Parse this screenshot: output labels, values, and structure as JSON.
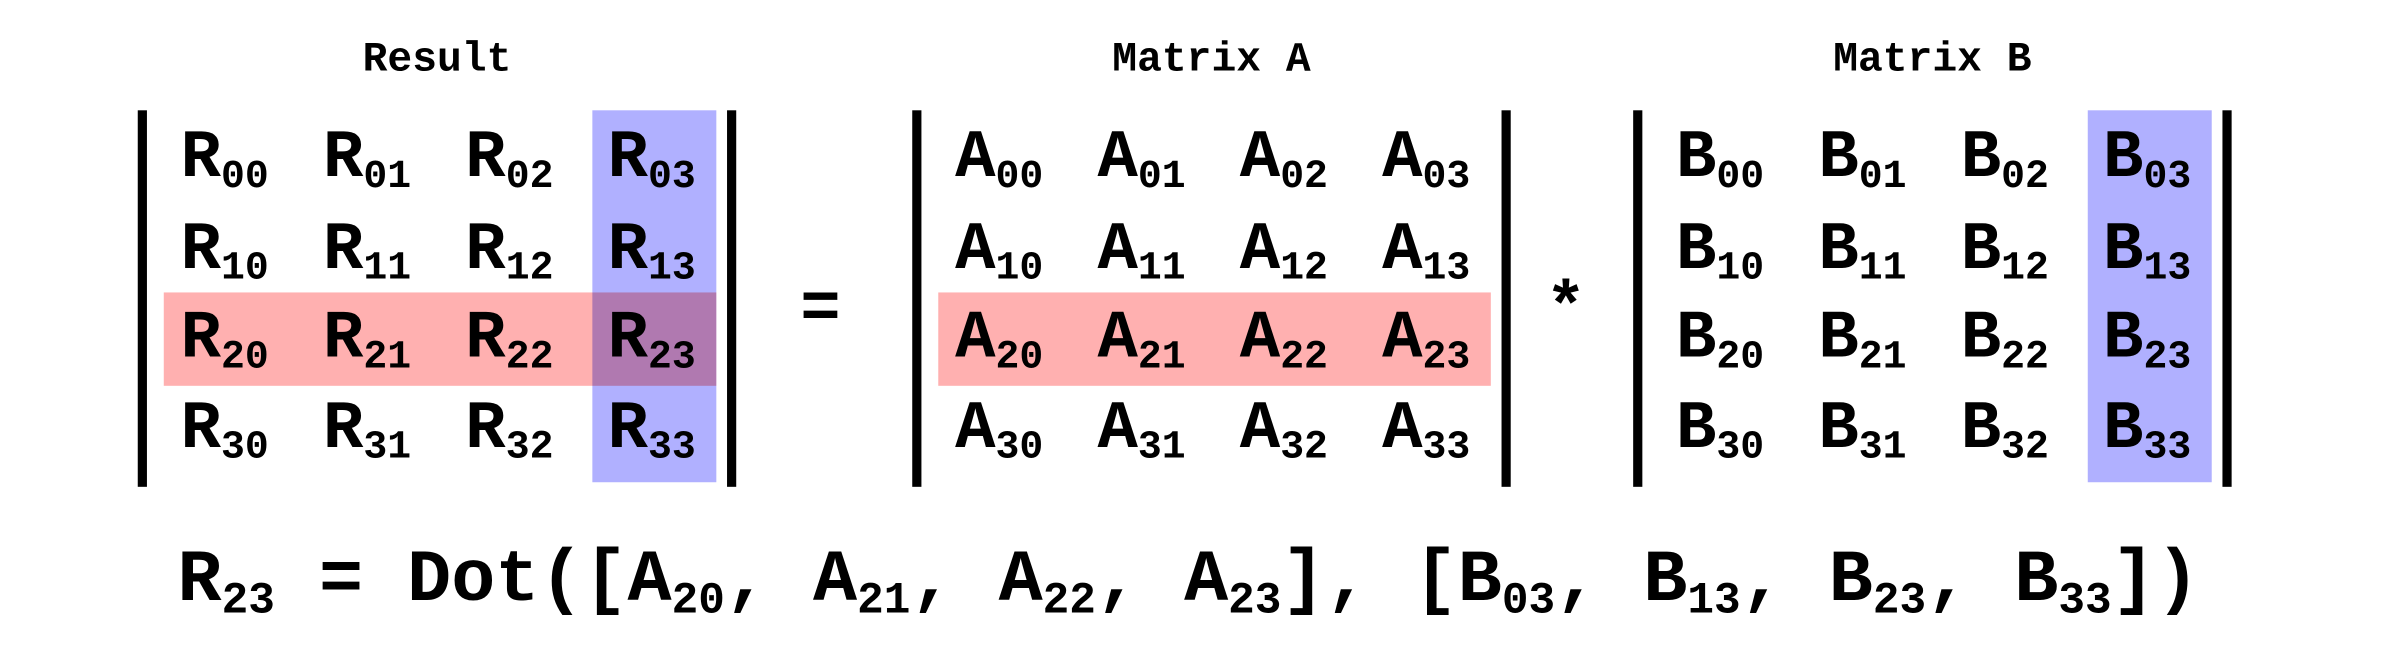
{
  "matrices": [
    {
      "title": "Result",
      "highlight_row": 2,
      "highlight_col": 3,
      "cells": [
        [
          {
            "base": "R",
            "sub": "00"
          },
          {
            "base": "R",
            "sub": "01"
          },
          {
            "base": "R",
            "sub": "02"
          },
          {
            "base": "R",
            "sub": "03"
          }
        ],
        [
          {
            "base": "R",
            "sub": "10"
          },
          {
            "base": "R",
            "sub": "11"
          },
          {
            "base": "R",
            "sub": "12"
          },
          {
            "base": "R",
            "sub": "13"
          }
        ],
        [
          {
            "base": "R",
            "sub": "20"
          },
          {
            "base": "R",
            "sub": "21"
          },
          {
            "base": "R",
            "sub": "22"
          },
          {
            "base": "R",
            "sub": "23"
          }
        ],
        [
          {
            "base": "R",
            "sub": "30"
          },
          {
            "base": "R",
            "sub": "31"
          },
          {
            "base": "R",
            "sub": "32"
          },
          {
            "base": "R",
            "sub": "33"
          }
        ]
      ]
    },
    {
      "title": "Matrix A",
      "highlight_row": 2,
      "cells": [
        [
          {
            "base": "A",
            "sub": "00"
          },
          {
            "base": "A",
            "sub": "01"
          },
          {
            "base": "A",
            "sub": "02"
          },
          {
            "base": "A",
            "sub": "03"
          }
        ],
        [
          {
            "base": "A",
            "sub": "10"
          },
          {
            "base": "A",
            "sub": "11"
          },
          {
            "base": "A",
            "sub": "12"
          },
          {
            "base": "A",
            "sub": "13"
          }
        ],
        [
          {
            "base": "A",
            "sub": "20"
          },
          {
            "base": "A",
            "sub": "21"
          },
          {
            "base": "A",
            "sub": "22"
          },
          {
            "base": "A",
            "sub": "23"
          }
        ],
        [
          {
            "base": "A",
            "sub": "30"
          },
          {
            "base": "A",
            "sub": "31"
          },
          {
            "base": "A",
            "sub": "32"
          },
          {
            "base": "A",
            "sub": "33"
          }
        ]
      ]
    },
    {
      "title": "Matrix B",
      "highlight_col": 3,
      "cells": [
        [
          {
            "base": "B",
            "sub": "00"
          },
          {
            "base": "B",
            "sub": "01"
          },
          {
            "base": "B",
            "sub": "02"
          },
          {
            "base": "B",
            "sub": "03"
          }
        ],
        [
          {
            "base": "B",
            "sub": "10"
          },
          {
            "base": "B",
            "sub": "11"
          },
          {
            "base": "B",
            "sub": "12"
          },
          {
            "base": "B",
            "sub": "13"
          }
        ],
        [
          {
            "base": "B",
            "sub": "20"
          },
          {
            "base": "B",
            "sub": "21"
          },
          {
            "base": "B",
            "sub": "22"
          },
          {
            "base": "B",
            "sub": "23"
          }
        ],
        [
          {
            "base": "B",
            "sub": "30"
          },
          {
            "base": "B",
            "sub": "31"
          },
          {
            "base": "B",
            "sub": "32"
          },
          {
            "base": "B",
            "sub": "33"
          }
        ]
      ]
    }
  ],
  "operators": [
    "=",
    "*"
  ],
  "row_color": "#ffb0b0",
  "col_color": "#b0b0ff",
  "formula": [
    {
      "text": "R",
      "sub": "23"
    },
    {
      "text": " = Dot([A",
      "sub": "20"
    },
    {
      "text": ", A",
      "sub": "21"
    },
    {
      "text": ", A",
      "sub": "22"
    },
    {
      "text": ", A",
      "sub": "23"
    },
    {
      "text": "], [B",
      "sub": "03"
    },
    {
      "text": ", B",
      "sub": "13"
    },
    {
      "text": ", B",
      "sub": "23"
    },
    {
      "text": ", B",
      "sub": "33"
    },
    {
      "text": "])"
    }
  ]
}
